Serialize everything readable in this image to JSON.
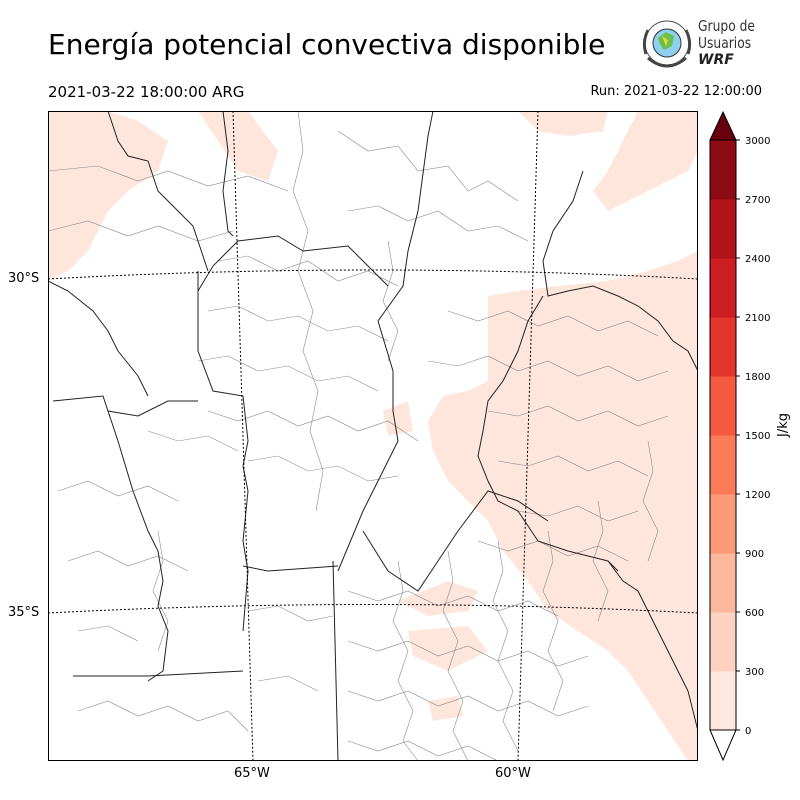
{
  "header": {
    "title": "Energía potencial convectiva disponible",
    "valid_time": "2021-03-22 18:00:00 ARG",
    "run_time": "Run: 2021-03-22 12:00:00"
  },
  "logo": {
    "line1": "Grupo de",
    "line2": "Usuarios",
    "line3": "WRF",
    "icon": "globe-wreath-logo-icon"
  },
  "map": {
    "lat_labels": [
      "30°S",
      "35°S"
    ],
    "lon_labels": [
      "65°W",
      "60°W"
    ],
    "field_color": "#fee6dc",
    "border_color": "#222222",
    "district_color": "#8a8a8a"
  },
  "colorbar": {
    "unit": "J/kg",
    "ticks": [
      "0",
      "300",
      "600",
      "900",
      "1200",
      "1500",
      "1800",
      "2100",
      "2400",
      "2700",
      "3000"
    ],
    "colors": [
      "#fee8df",
      "#fdd2c0",
      "#fcb89c",
      "#fc9a78",
      "#fb7b59",
      "#f45a42",
      "#e3352e",
      "#cc1d22",
      "#b01319",
      "#8c0b14",
      "#67000d"
    ]
  }
}
